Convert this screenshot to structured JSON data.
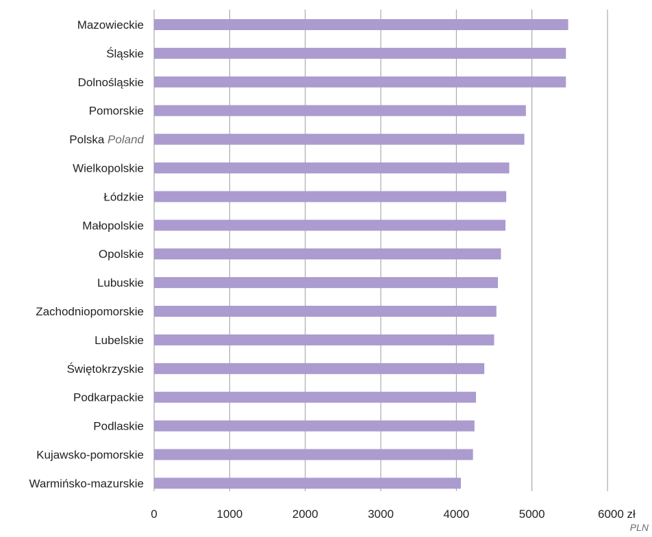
{
  "chart_data": {
    "type": "bar",
    "orientation": "horizontal",
    "categories": [
      {
        "label": "Mazowieckie",
        "sublabel": ""
      },
      {
        "label": "Śląskie",
        "sublabel": ""
      },
      {
        "label": "Dolnośląskie",
        "sublabel": ""
      },
      {
        "label": "Pomorskie",
        "sublabel": ""
      },
      {
        "label": "Polska",
        "sublabel": "Poland"
      },
      {
        "label": "Wielkopolskie",
        "sublabel": ""
      },
      {
        "label": "Łódzkie",
        "sublabel": ""
      },
      {
        "label": "Małopolskie",
        "sublabel": ""
      },
      {
        "label": "Opolskie",
        "sublabel": ""
      },
      {
        "label": "Lubuskie",
        "sublabel": ""
      },
      {
        "label": "Zachodniopomorskie",
        "sublabel": ""
      },
      {
        "label": "Lubelskie",
        "sublabel": ""
      },
      {
        "label": "Świętokrzyskie",
        "sublabel": ""
      },
      {
        "label": "Podkarpackie",
        "sublabel": ""
      },
      {
        "label": "Podlaskie",
        "sublabel": ""
      },
      {
        "label": "Kujawsko-pomorskie",
        "sublabel": ""
      },
      {
        "label": "Warmińsko-mazurskie",
        "sublabel": ""
      }
    ],
    "values": [
      5480,
      5450,
      5450,
      4920,
      4900,
      4700,
      4660,
      4650,
      4590,
      4550,
      4530,
      4500,
      4370,
      4260,
      4240,
      4220,
      4060
    ],
    "xlim": [
      0,
      6000
    ],
    "ticks": [
      {
        "value": 0,
        "label": "0"
      },
      {
        "value": 1000,
        "label": "1000"
      },
      {
        "value": 2000,
        "label": "2000"
      },
      {
        "value": 3000,
        "label": "3000"
      },
      {
        "value": 4000,
        "label": "4000"
      },
      {
        "value": 5000,
        "label": "5000"
      },
      {
        "value": 6000,
        "label": "6000 zł"
      }
    ],
    "unit_label": "PLN",
    "grid": true,
    "colors": {
      "bar": "#ab9bcf",
      "grid": "#9a9a9a",
      "text": "#222222",
      "sublabel": "#6b6b6b"
    }
  }
}
